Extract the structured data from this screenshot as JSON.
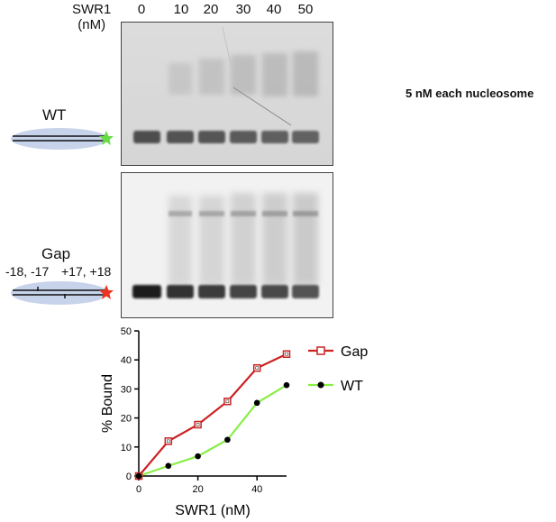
{
  "header": {
    "title_line1": "SWR1",
    "title_line2": "(nM)",
    "lanes": [
      "0",
      "10",
      "20",
      "30",
      "40",
      "50"
    ]
  },
  "note": "5 nM each nucleosome",
  "samples": {
    "wt": {
      "label": "WT",
      "marker_color": "#66dd44"
    },
    "gap": {
      "label": "Gap",
      "positions_left": "-18, -17",
      "positions_right": "+17, +18",
      "marker_color": "#ee3322"
    }
  },
  "chart_data": {
    "type": "line",
    "xlabel": "SWR1 (nM)",
    "ylabel": "% Bound",
    "xlim": [
      0,
      50
    ],
    "ylim": [
      0,
      50
    ],
    "x_ticks": [
      0,
      20,
      40
    ],
    "y_ticks": [
      0,
      10,
      20,
      30,
      40,
      50
    ],
    "grid": false,
    "legend": "top-right",
    "x": [
      0,
      10,
      20,
      30,
      40,
      50
    ],
    "series": [
      {
        "name": "Gap",
        "values": [
          0,
          12,
          17.7,
          25.7,
          37.2,
          42
        ],
        "line_color": "#cc2222",
        "marker": "open-square"
      },
      {
        "name": "WT",
        "values": [
          0,
          3.5,
          6.8,
          12.5,
          25.2,
          31.3
        ],
        "line_color": "#88ee44",
        "marker": "filled-circle"
      }
    ]
  }
}
